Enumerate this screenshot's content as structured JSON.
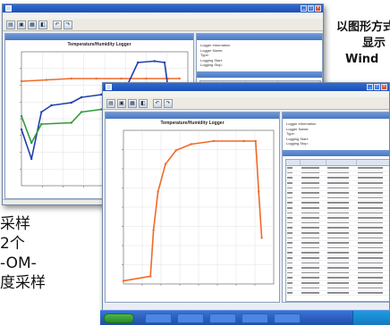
{
  "captions": {
    "right": [
      "以图形方式",
      "显示",
      "Wind"
    ],
    "left": [
      "采样",
      "2个",
      "-OM-",
      "度采样"
    ]
  },
  "back_window": {
    "chart_title": "Temperature/Humidity Logger",
    "info_lines": [
      "Logger information",
      "Logger Name:   ",
      "Type:   ",
      "Logging Start:   ",
      "Logging Stop:   "
    ]
  },
  "front_window": {
    "chart_title": "Temperature/Humidity Logger",
    "info_lines": [
      "Logger information",
      "Logger Name:   ",
      "Type:   ",
      "Logging Start:   ",
      "Logging Stop:   "
    ]
  },
  "colors": {
    "orange": "#f06a2a",
    "blue": "#1f3fb0",
    "green": "#2f9a3a",
    "titlebar": "#1b4fb2"
  },
  "icons": [
    "app-icon",
    "minimize-icon",
    "maximize-icon",
    "close-icon",
    "save-icon",
    "open-icon",
    "print-icon",
    "start-icon"
  ],
  "back_chart_data": {
    "type": "line",
    "series": [
      {
        "color": "#f06a2a",
        "points": [
          [
            0,
            0.78
          ],
          [
            0.15,
            0.79
          ],
          [
            0.3,
            0.8
          ],
          [
            0.45,
            0.8
          ],
          [
            0.6,
            0.8
          ],
          [
            0.75,
            0.8
          ],
          [
            0.88,
            0.8
          ],
          [
            0.95,
            0.8
          ]
        ]
      },
      {
        "color": "#1f3fb0",
        "points": [
          [
            0,
            0.42
          ],
          [
            0.06,
            0.2
          ],
          [
            0.12,
            0.55
          ],
          [
            0.18,
            0.6
          ],
          [
            0.3,
            0.62
          ],
          [
            0.36,
            0.66
          ],
          [
            0.48,
            0.68
          ],
          [
            0.54,
            0.74
          ],
          [
            0.64,
            0.76
          ],
          [
            0.7,
            0.92
          ],
          [
            0.8,
            0.93
          ],
          [
            0.86,
            0.92
          ],
          [
            0.9,
            0.55
          ],
          [
            0.95,
            0.4
          ]
        ]
      },
      {
        "color": "#2f9a3a",
        "points": [
          [
            0,
            0.52
          ],
          [
            0.06,
            0.32
          ],
          [
            0.12,
            0.46
          ],
          [
            0.3,
            0.47
          ],
          [
            0.36,
            0.55
          ],
          [
            0.48,
            0.57
          ],
          [
            0.54,
            0.62
          ],
          [
            0.64,
            0.63
          ],
          [
            0.7,
            0.7
          ],
          [
            0.86,
            0.7
          ],
          [
            0.9,
            0.55
          ],
          [
            0.95,
            0.45
          ]
        ]
      }
    ]
  },
  "front_chart_data": {
    "type": "line",
    "series": [
      {
        "color": "#f06a2a",
        "points": [
          [
            0,
            0.02
          ],
          [
            0.18,
            0.05
          ],
          [
            0.2,
            0.35
          ],
          [
            0.23,
            0.6
          ],
          [
            0.28,
            0.78
          ],
          [
            0.35,
            0.87
          ],
          [
            0.45,
            0.91
          ],
          [
            0.6,
            0.93
          ],
          [
            0.8,
            0.93
          ],
          [
            0.88,
            0.93
          ],
          [
            0.9,
            0.6
          ],
          [
            0.92,
            0.3
          ]
        ]
      }
    ]
  },
  "grid_rows_back": 12,
  "grid_rows_front": 26
}
